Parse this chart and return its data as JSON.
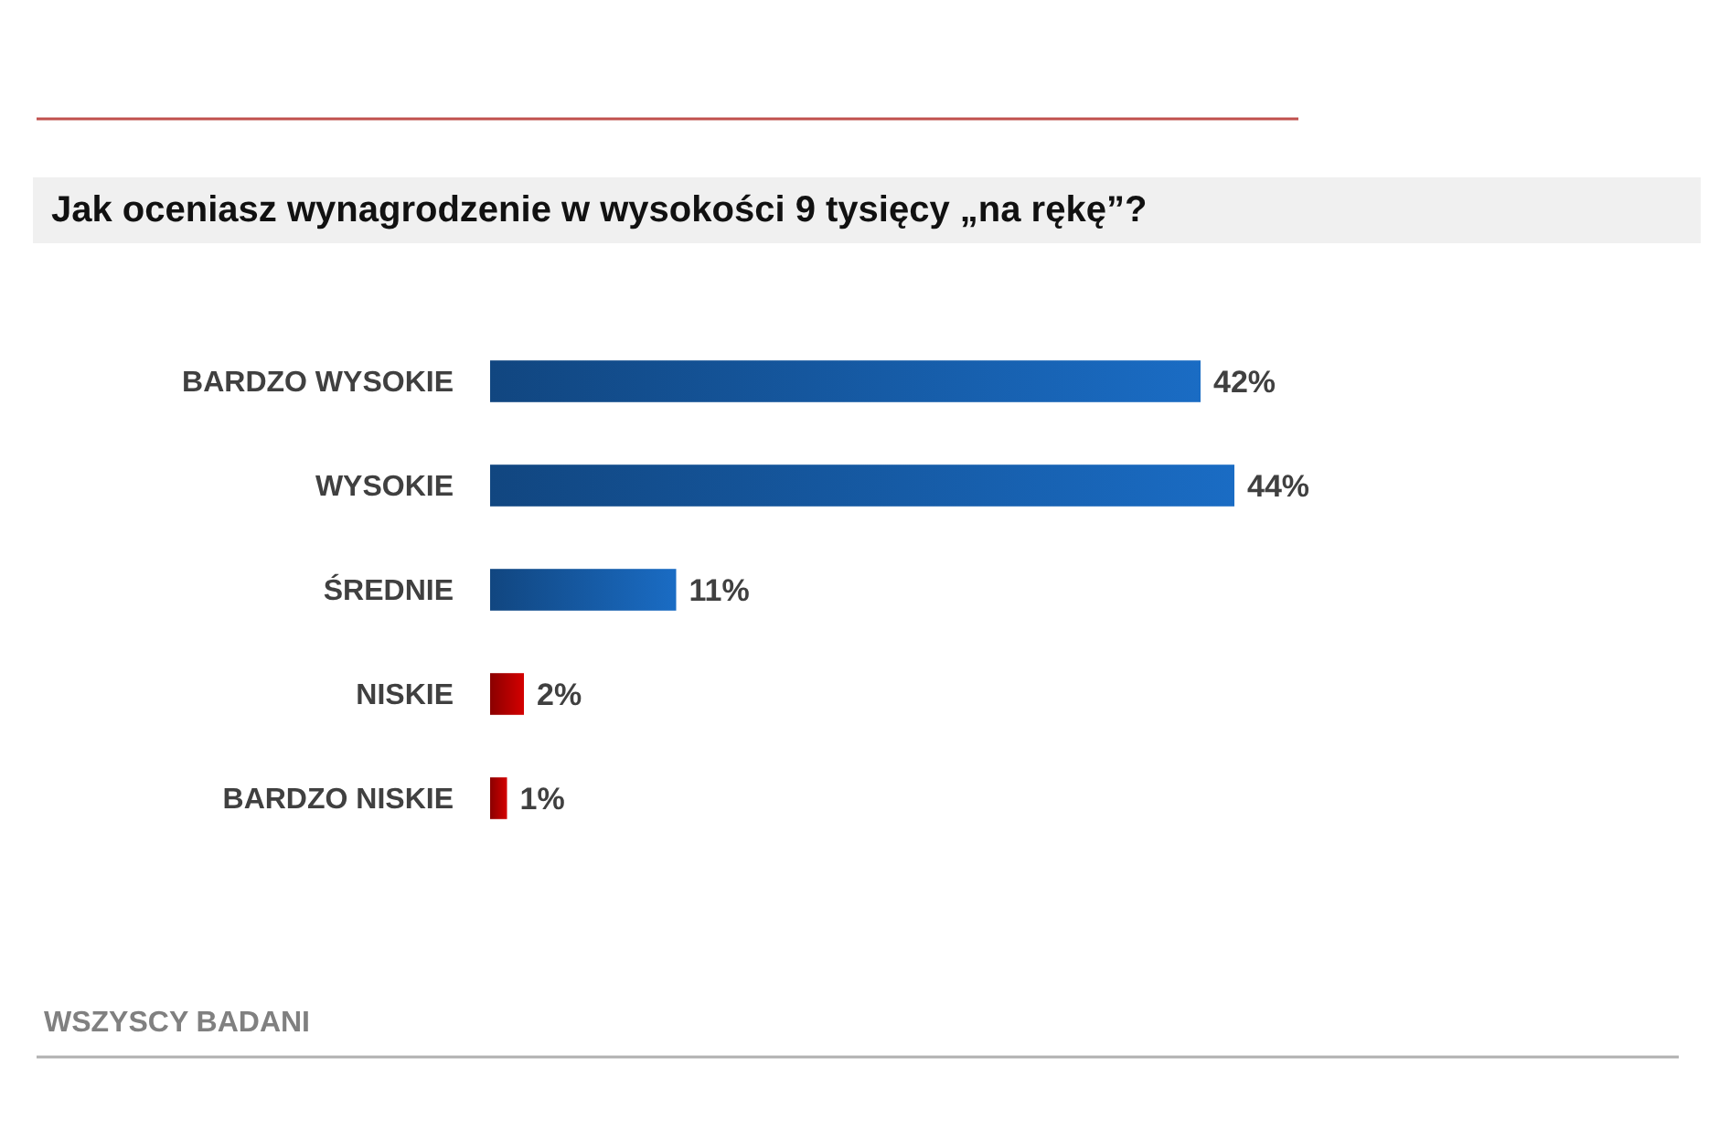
{
  "chart_data": {
    "type": "bar",
    "orientation": "horizontal",
    "title": "Jak oceniasz wynagrodzenie w wysokości 9 tysięcy „na rękę”?",
    "categories": [
      "BARDZO WYSOKIE",
      "WYSOKIE",
      "ŚREDNIE",
      "NISKIE",
      "BARDZO NISKIE"
    ],
    "values": [
      42,
      44,
      11,
      2,
      1
    ],
    "value_labels": [
      "42%",
      "44%",
      "11%",
      "2%",
      "1%"
    ],
    "colors": [
      "#1a6cc4",
      "#1a6cc4",
      "#1a6cc4",
      "#d40000",
      "#d40000"
    ],
    "annotations": [
      "WSZYSCY BADANI"
    ]
  }
}
